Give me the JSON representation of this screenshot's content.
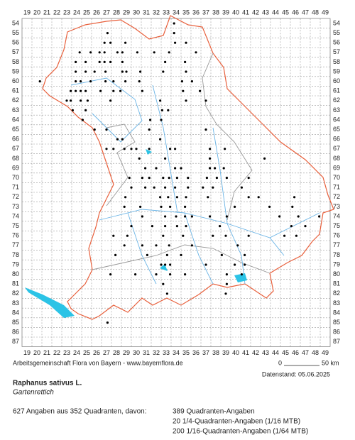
{
  "map": {
    "column_labels": [
      19,
      20,
      21,
      22,
      23,
      24,
      25,
      26,
      27,
      28,
      29,
      30,
      31,
      32,
      33,
      34,
      35,
      36,
      37,
      38,
      39,
      40,
      41,
      42,
      43,
      44,
      45,
      46,
      47,
      48,
      49
    ],
    "row_labels": [
      54,
      55,
      56,
      57,
      58,
      59,
      60,
      61,
      62,
      63,
      64,
      65,
      66,
      67,
      68,
      69,
      70,
      71,
      72,
      73,
      74,
      75,
      76,
      77,
      78,
      79,
      80,
      81,
      82,
      83,
      84,
      85,
      86,
      87
    ],
    "records": [
      {
        "row": 54,
        "cols": [
          33.8
        ]
      },
      {
        "row": 55,
        "cols": [
          27.1,
          33.8
        ]
      },
      {
        "row": 56,
        "cols": [
          26.8,
          27.4,
          28.9,
          33.9,
          35
        ]
      },
      {
        "row": 57,
        "cols": [
          24.3,
          25.4,
          26.3,
          26.8,
          28.1,
          28.6,
          30.1,
          31.8,
          33.3,
          36
        ]
      },
      {
        "row": 58,
        "cols": [
          23.9,
          24.9,
          26.3,
          26.8,
          27.4,
          28.6,
          32.9,
          34.9
        ]
      },
      {
        "row": 59,
        "cols": [
          23.9,
          24.9,
          25.8,
          26.9,
          28.6,
          29,
          30.4,
          32.7,
          35
        ]
      },
      {
        "row": 60,
        "cols": [
          20.3,
          23.9,
          24.4,
          25.4,
          26.9,
          27.7,
          28.9,
          30.3,
          34.6,
          35.6
        ]
      },
      {
        "row": 61,
        "cols": [
          23.4,
          23.9,
          24.4,
          24.9,
          26.4,
          27.7,
          28.4,
          30.6,
          34.7,
          36.4
        ]
      },
      {
        "row": 62,
        "cols": [
          23,
          23.4,
          24.4,
          25.1,
          27.4,
          32.4,
          35,
          37
        ]
      },
      {
        "row": 63,
        "cols": [
          23.6,
          24.9,
          32.6,
          33.2
        ]
      },
      {
        "row": 64,
        "cols": [
          24.6,
          31.4,
          32.5
        ]
      },
      {
        "row": 65,
        "cols": [
          25.8,
          27,
          31.3,
          37
        ]
      },
      {
        "row": 66,
        "cols": [
          28.1,
          28.6,
          32.4
        ]
      },
      {
        "row": 67,
        "cols": [
          27,
          27.7,
          28.8,
          29.5,
          30,
          31.3,
          33.4,
          33.9,
          37.4,
          38.9
        ]
      },
      {
        "row": 68,
        "cols": [
          30.3,
          32.9,
          37.4,
          42.9
        ]
      },
      {
        "row": 69,
        "cols": [
          30.9,
          32,
          33.9,
          34.5,
          37.4,
          37.9,
          38.8
        ]
      },
      {
        "row": 70,
        "cols": [
          29.3,
          30.6,
          31.3,
          32.7,
          33.3,
          34.1,
          35.2,
          37.1,
          38.1,
          39.1,
          41.3
        ]
      },
      {
        "row": 71,
        "cols": [
          29.5,
          30.9,
          31.8,
          32.9,
          33.9,
          35.2,
          36.7,
          37.7,
          40.6
        ]
      },
      {
        "row": 72,
        "cols": [
          28.9,
          32.4,
          33.2,
          34.1,
          35,
          37.2,
          41.3,
          42.3,
          45.9
        ]
      },
      {
        "row": 73,
        "cols": [
          28.8,
          30.4,
          32.5,
          33.4,
          34.9,
          39.9,
          43.4,
          45.7
        ]
      },
      {
        "row": 74,
        "cols": [
          30.6,
          32.9,
          34,
          34.9,
          35.6,
          37.4,
          39.1,
          44.4,
          46.3,
          48.4
        ]
      },
      {
        "row": 75,
        "cols": [
          29.5,
          31.6,
          32.9,
          34.1,
          35,
          38.4,
          45.6,
          47
        ]
      },
      {
        "row": 76,
        "cols": [
          27.7,
          29.1,
          32.7,
          34.7,
          37.7,
          39,
          41.3,
          44.9,
          46.1
        ]
      },
      {
        "row": 77,
        "cols": [
          28.8,
          30.6,
          32,
          33.3,
          35.6,
          40.2
        ]
      },
      {
        "row": 78,
        "cols": [
          27.9,
          31.1,
          33.1,
          34.5,
          38.6,
          40.9
        ]
      },
      {
        "row": 79,
        "cols": [
          32.5,
          32.9,
          33.4,
          37,
          39.9,
          40.9
        ]
      },
      {
        "row": 80,
        "cols": [
          27.4,
          29.9,
          32,
          33.4,
          34.9,
          39.1,
          40.6
        ]
      },
      {
        "row": 81,
        "cols": [
          32.7,
          39.1
        ]
      },
      {
        "row": 82,
        "cols": [
          33.1,
          39
        ]
      },
      {
        "row": 85,
        "cols": [
          27.1
        ]
      }
    ]
  },
  "credit": "Arbeitsgemeinschaft Flora von Bayern - www.bayernflora.de",
  "scale": {
    "start": "0",
    "end": "50 km"
  },
  "date": "Datenstand: 05.06.2025",
  "species": {
    "name": "Raphanus sativus L.",
    "common": "Gartenrettich"
  },
  "stats": {
    "summary": "627 Angaben aus 352 Quadranten, davon:",
    "lines": [
      "389 Quadranten-Angaben",
      "20 1/4-Quadranten-Angaben (1/16 MTB)",
      "200 1/16-Quadranten-Angaben (1/64 MTB)"
    ]
  }
}
